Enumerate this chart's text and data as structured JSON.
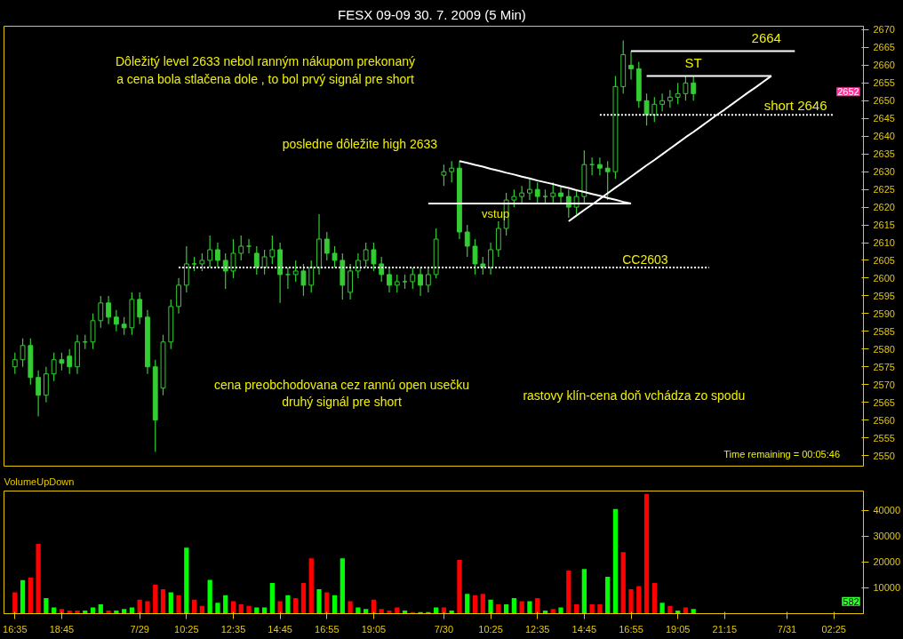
{
  "chart_data": [
    {
      "type": "candlestick",
      "title": "FESX 09-09  30. 7. 2009 (5 Min)",
      "color": "#33cc33",
      "tick_labels": "y",
      "categories": [
        null,
        null,
        null,
        null,
        null,
        null,
        null,
        null,
        null,
        null,
        null,
        null,
        null,
        null,
        null,
        null,
        null,
        null,
        null,
        null,
        null,
        null,
        null,
        null,
        null,
        null,
        null,
        null,
        null,
        null,
        null,
        null,
        null,
        null,
        null,
        null,
        null,
        null,
        null,
        null,
        null,
        null,
        null,
        null,
        null,
        null,
        null,
        null,
        null,
        null,
        null,
        null,
        null,
        null,
        null,
        null,
        null,
        null,
        null,
        null,
        null,
        null,
        null,
        null,
        null,
        null,
        null,
        null,
        null,
        null,
        null,
        null,
        null,
        null,
        null,
        null,
        null,
        null,
        null,
        null,
        null,
        null,
        null,
        null,
        null,
        null,
        null,
        null,
        null,
        null,
        null,
        null,
        null,
        null,
        null,
        null,
        null,
        null,
        null,
        null,
        null,
        null,
        null,
        null,
        null,
        null
      ],
      "ylim": [
        2547,
        2671
      ],
      "yticks": [
        2550,
        2555,
        2560,
        2565,
        2570,
        2575,
        2580,
        2585,
        2590,
        2595,
        2600,
        2605,
        2610,
        2615,
        2620,
        2625,
        2630,
        2635,
        2640,
        2645,
        2650,
        2655,
        2660,
        2665,
        2670
      ],
      "ohlc": [
        [
          2575,
          2579,
          2573,
          2577
        ],
        [
          2577,
          2583,
          2575,
          2581
        ],
        [
          2581,
          2583,
          2570,
          2572
        ],
        [
          2572,
          2574,
          2561,
          2567
        ],
        [
          2567,
          2575,
          2565,
          2573
        ],
        [
          2573,
          2579,
          2571,
          2577
        ],
        [
          2577,
          2579,
          2574,
          2576
        ],
        [
          2578,
          2580,
          2573,
          2575
        ],
        [
          2575,
          2584,
          2573,
          2582
        ],
        [
          2582,
          2584,
          2580,
          2582
        ],
        [
          2582,
          2590,
          2580,
          2588
        ],
        [
          2588,
          2595,
          2586,
          2593
        ],
        [
          2593,
          2595,
          2587,
          2589
        ],
        [
          2589,
          2591,
          2585,
          2587
        ],
        [
          2587,
          2589,
          2584,
          2586
        ],
        [
          2586,
          2596,
          2584,
          2594
        ],
        [
          2594,
          2596,
          2587,
          2589
        ],
        [
          2589,
          2591,
          2573,
          2575
        ],
        [
          2575,
          2577,
          2551,
          2560
        ],
        [
          2569,
          2584,
          2567,
          2582
        ],
        [
          2582,
          2594,
          2580,
          2592
        ],
        [
          2592,
          2600,
          2590,
          2598
        ],
        [
          2598,
          2609,
          2596,
          2604
        ],
        [
          2604,
          2606,
          2602,
          2604
        ],
        [
          2604,
          2607,
          2602,
          2605
        ],
        [
          2605,
          2612,
          2603,
          2608
        ],
        [
          2608,
          2610,
          2603,
          2605
        ],
        [
          2605,
          2607,
          2597,
          2602
        ],
        [
          2602,
          2611,
          2600,
          2607
        ],
        [
          2607,
          2612,
          2605,
          2609
        ],
        [
          2609,
          2611,
          2607,
          2609
        ],
        [
          2607,
          2609,
          2601,
          2603
        ],
        [
          2603,
          2608,
          2601,
          2606
        ],
        [
          2606,
          2612,
          2604,
          2608
        ],
        [
          2608,
          2610,
          2593,
          2601
        ],
        [
          2601,
          2603,
          2597,
          2601
        ],
        [
          2601,
          2605,
          2599,
          2602
        ],
        [
          2602,
          2604,
          2595,
          2598
        ],
        [
          2598,
          2605,
          2596,
          2603
        ],
        [
          2603,
          2618,
          2601,
          2611
        ],
        [
          2611,
          2613,
          2605,
          2607
        ],
        [
          2607,
          2609,
          2603,
          2605
        ],
        [
          2605,
          2607,
          2594,
          2598
        ],
        [
          2596,
          2604,
          2594,
          2602
        ],
        [
          2602,
          2607,
          2600,
          2605
        ],
        [
          2605,
          2610,
          2603,
          2608
        ],
        [
          2608,
          2610,
          2602,
          2604
        ],
        [
          2604,
          2606,
          2599,
          2601
        ],
        [
          2601,
          2603,
          2596,
          2598
        ],
        [
          2598,
          2601,
          2596,
          2599
        ],
        [
          2599,
          2601,
          2597,
          2599
        ],
        [
          2599,
          2603,
          2597,
          2601
        ],
        [
          2601,
          2603,
          2595,
          2598
        ],
        [
          2598,
          2603,
          2596,
          2601
        ],
        [
          2601,
          2614,
          2600,
          2611
        ],
        [
          2629,
          2632,
          2626,
          2630
        ],
        [
          2630,
          2633,
          2627,
          2631
        ],
        [
          2631,
          2633,
          2611,
          2613
        ],
        [
          2613,
          2615,
          2606,
          2609
        ],
        [
          2609,
          2611,
          2601,
          2604
        ],
        [
          2604,
          2606,
          2601,
          2603
        ],
        [
          2603,
          2610,
          2601,
          2608
        ],
        [
          2608,
          2616,
          2606,
          2614
        ],
        [
          2614,
          2624,
          2612,
          2622
        ],
        [
          2622,
          2625,
          2620,
          2623
        ],
        [
          2623,
          2626,
          2621,
          2624
        ],
        [
          2624,
          2628,
          2622,
          2625
        ],
        [
          2625,
          2627,
          2621,
          2623
        ],
        [
          2623,
          2625,
          2621,
          2623
        ],
        [
          2623,
          2627,
          2621,
          2624
        ],
        [
          2624,
          2626,
          2621,
          2623
        ],
        [
          2623,
          2625,
          2617,
          2620
        ],
        [
          2620,
          2625,
          2618,
          2623
        ],
        [
          2623,
          2636,
          2621,
          2632
        ],
        [
          2632,
          2634,
          2629,
          2632
        ],
        [
          2632,
          2634,
          2629,
          2631
        ],
        [
          2631,
          2633,
          2622,
          2630
        ],
        [
          2630,
          2657,
          2628,
          2654
        ],
        [
          2654,
          2667,
          2652,
          2663
        ],
        [
          2660,
          2664,
          2656,
          2659
        ],
        [
          2659,
          2661,
          2648,
          2650
        ],
        [
          2650,
          2652,
          2643,
          2646
        ],
        [
          2646,
          2651,
          2644,
          2649
        ],
        [
          2649,
          2652,
          2647,
          2650
        ],
        [
          2650,
          2653,
          2648,
          2651
        ],
        [
          2651,
          2655,
          2649,
          2652
        ],
        [
          2652,
          2657,
          2650,
          2655
        ],
        [
          2655,
          2657,
          2650,
          2652
        ],
        null,
        null,
        null,
        null,
        null,
        null,
        null,
        null,
        null,
        null,
        null,
        null,
        null,
        null,
        null,
        null,
        null,
        null
      ],
      "series": [
        {
          "type": "line",
          "color": "#ffffff",
          "line_style": "solid",
          "values": [
            null,
            null,
            null,
            null,
            null,
            null,
            null,
            null,
            null,
            null,
            null,
            null,
            null,
            null,
            null,
            null,
            null,
            null,
            null,
            null,
            null,
            null,
            null,
            null,
            null,
            null,
            null,
            null,
            null,
            null,
            null,
            null,
            null,
            null,
            null,
            null,
            null,
            null,
            null,
            null,
            null,
            null,
            null,
            null,
            null,
            null,
            null,
            null,
            null,
            null,
            null,
            null,
            null,
            null,
            null,
            null,
            null,
            2633,
            2632.5,
            2631.9,
            2631.4,
            2630.8,
            2630.3,
            2629.7,
            2629.2,
            2628.6,
            2628.1,
            2627.5,
            2627,
            2626.5,
            2625.9,
            2625.4,
            2624.8,
            2624.3,
            2623.7,
            2623.2,
            2622.6,
            2622.1,
            2621.5,
            2621,
            null,
            null,
            null,
            null,
            null,
            null,
            null,
            null,
            null,
            null,
            null,
            null,
            null,
            null,
            null,
            null,
            null,
            null,
            null,
            null,
            null,
            null,
            null,
            null,
            null,
            null
          ]
        },
        {
          "type": "line",
          "color": "#ffffff",
          "line_style": "solid",
          "values": [
            null,
            null,
            null,
            null,
            null,
            null,
            null,
            null,
            null,
            null,
            null,
            null,
            null,
            null,
            null,
            null,
            null,
            null,
            null,
            null,
            null,
            null,
            null,
            null,
            null,
            null,
            null,
            null,
            null,
            null,
            null,
            null,
            null,
            null,
            null,
            null,
            null,
            null,
            null,
            null,
            null,
            null,
            null,
            null,
            null,
            null,
            null,
            null,
            null,
            null,
            null,
            null,
            null,
            2621,
            2621,
            2621,
            2621,
            2621,
            2621,
            2621,
            2621,
            2621,
            2621,
            2621,
            2621,
            2621,
            2621,
            2621,
            2621,
            2621,
            2621,
            2621,
            2621,
            2621,
            2621,
            2621,
            2621,
            2621,
            2621,
            2621,
            null,
            null,
            null,
            null,
            null,
            null,
            null,
            null,
            null,
            null,
            null,
            null,
            null,
            null,
            null,
            null,
            null,
            null,
            null,
            null,
            null,
            null,
            null,
            null,
            null,
            null
          ]
        },
        {
          "type": "line",
          "color": "#ffffff",
          "line_style": "solid",
          "values": [
            null,
            null,
            null,
            null,
            null,
            null,
            null,
            null,
            null,
            null,
            null,
            null,
            null,
            null,
            null,
            null,
            null,
            null,
            null,
            null,
            null,
            null,
            null,
            null,
            null,
            null,
            null,
            null,
            null,
            null,
            null,
            null,
            null,
            null,
            null,
            null,
            null,
            null,
            null,
            null,
            null,
            null,
            null,
            null,
            null,
            null,
            null,
            null,
            null,
            null,
            null,
            null,
            null,
            null,
            null,
            null,
            null,
            null,
            null,
            null,
            null,
            null,
            null,
            null,
            null,
            null,
            null,
            null,
            null,
            null,
            null,
            2616,
            2617.6,
            2619.2,
            2620.7,
            2622.3,
            2623.9,
            2625.5,
            2627,
            2628.6,
            2630.2,
            2631.8,
            2633.3,
            2634.9,
            2636.5,
            2638.1,
            2639.7,
            2641.2,
            2642.8,
            2644.4,
            2646,
            2647.5,
            2649.1,
            2650.7,
            2652.3,
            2653.8,
            2655.4,
            2657,
            null,
            null,
            null,
            null,
            null,
            null,
            null,
            null
          ]
        },
        {
          "type": "line",
          "color": "#ffffff",
          "line_style": "solid",
          "values": [
            null,
            null,
            null,
            null,
            null,
            null,
            null,
            null,
            null,
            null,
            null,
            null,
            null,
            null,
            null,
            null,
            null,
            null,
            null,
            null,
            null,
            null,
            null,
            null,
            null,
            null,
            null,
            null,
            null,
            null,
            null,
            null,
            null,
            null,
            null,
            null,
            null,
            null,
            null,
            null,
            null,
            null,
            null,
            null,
            null,
            null,
            null,
            null,
            null,
            null,
            null,
            null,
            null,
            null,
            null,
            null,
            null,
            null,
            null,
            null,
            null,
            null,
            null,
            null,
            null,
            null,
            null,
            null,
            null,
            null,
            null,
            null,
            null,
            null,
            null,
            null,
            null,
            null,
            null,
            null,
            null,
            2657,
            2657,
            2657,
            2657,
            2657,
            2657,
            2657,
            2657,
            2657,
            2657,
            2657,
            2657,
            2657,
            2657,
            2657,
            2657,
            2657,
            null,
            null,
            null,
            null,
            null,
            null,
            null,
            null
          ]
        },
        {
          "type": "line",
          "color": "#ffffff",
          "line_style": "solid",
          "values": [
            null,
            null,
            null,
            null,
            null,
            null,
            null,
            null,
            null,
            null,
            null,
            null,
            null,
            null,
            null,
            null,
            null,
            null,
            null,
            null,
            null,
            null,
            null,
            null,
            null,
            null,
            null,
            null,
            null,
            null,
            null,
            null,
            null,
            null,
            null,
            null,
            null,
            null,
            null,
            null,
            null,
            null,
            null,
            null,
            null,
            null,
            null,
            null,
            null,
            null,
            null,
            null,
            null,
            null,
            null,
            null,
            null,
            null,
            null,
            null,
            null,
            null,
            null,
            null,
            null,
            null,
            null,
            null,
            null,
            null,
            null,
            null,
            null,
            null,
            null,
            null,
            null,
            null,
            null,
            2664,
            2664,
            2664,
            2664,
            2664,
            2664,
            2664,
            2664,
            2664,
            2664,
            2664,
            2664,
            2664,
            2664,
            2664,
            2664,
            2664,
            2664,
            2664,
            2664,
            2664,
            2664,
            null,
            null,
            null,
            null,
            null
          ]
        },
        {
          "type": "line",
          "color": "#ffffff",
          "line_style": "dotted",
          "values": [
            null,
            null,
            null,
            null,
            null,
            null,
            null,
            null,
            null,
            null,
            null,
            null,
            null,
            null,
            null,
            null,
            null,
            null,
            null,
            null,
            null,
            2603,
            2603,
            2603,
            2603,
            2603,
            2603,
            2603,
            2603,
            2603,
            2603,
            2603,
            2603,
            2603,
            2603,
            2603,
            2603,
            2603,
            2603,
            2603,
            2603,
            2603,
            2603,
            2603,
            2603,
            2603,
            2603,
            2603,
            2603,
            2603,
            2603,
            2603,
            2603,
            2603,
            2603,
            2603,
            2603,
            2603,
            2603,
            2603,
            2603,
            2603,
            2603,
            2603,
            2603,
            2603,
            2603,
            2603,
            2603,
            2603,
            2603,
            2603,
            2603,
            2603,
            2603,
            2603,
            2603,
            2603,
            2603,
            2603,
            2603,
            2603,
            2603,
            2603,
            2603,
            2603,
            2603,
            2603,
            2603,
            2603,
            null,
            null,
            null,
            null,
            null,
            null,
            null,
            null,
            null,
            null,
            null,
            null,
            null,
            null,
            null,
            null
          ]
        },
        {
          "type": "line",
          "color": "#ffffff",
          "line_style": "dotted",
          "values": [
            null,
            null,
            null,
            null,
            null,
            null,
            null,
            null,
            null,
            null,
            null,
            null,
            null,
            null,
            null,
            null,
            null,
            null,
            null,
            null,
            null,
            null,
            null,
            null,
            null,
            null,
            null,
            null,
            null,
            null,
            null,
            null,
            null,
            null,
            null,
            null,
            null,
            null,
            null,
            null,
            null,
            null,
            null,
            null,
            null,
            null,
            null,
            null,
            null,
            null,
            null,
            null,
            null,
            null,
            null,
            null,
            null,
            null,
            null,
            null,
            null,
            null,
            null,
            null,
            null,
            null,
            null,
            null,
            null,
            null,
            null,
            null,
            null,
            null,
            null,
            2646,
            2646,
            2646,
            2646,
            2646,
            2646,
            2646,
            2646,
            2646,
            2646,
            2646,
            2646,
            2646,
            2646,
            2646,
            2646,
            2646,
            2646,
            2646,
            2646,
            2646,
            2646,
            2646,
            2646,
            2646,
            2646,
            2646,
            2646,
            2646,
            2646,
            2646
          ]
        }
      ],
      "annotations": [
        "Dôležitý level 2633 nebol ranným nákupom prekonaný\na cena bola stlačena dole , to bol prvý signál pre short",
        "posledne dôležite high 2633",
        "vstup",
        "CC2603",
        "ST",
        "2664",
        "short 2646",
        "cena preobchodovana cez rannú open usečku\ndruhý signál pre short",
        "rastovy klín-cena doň vchádza zo spodu",
        "Time remaining = 00:05:46",
        "2652"
      ]
    },
    {
      "type": "bar",
      "title": "VolumeUpDown",
      "categories": [
        "16:35",
        null,
        null,
        null,
        null,
        null,
        "18:45",
        null,
        null,
        null,
        null,
        null,
        null,
        null,
        null,
        null,
        "7/29",
        null,
        null,
        null,
        null,
        null,
        "10:25",
        null,
        null,
        null,
        null,
        null,
        "12:35",
        null,
        null,
        null,
        null,
        null,
        "14:45",
        null,
        null,
        null,
        null,
        null,
        "16:55",
        null,
        null,
        null,
        null,
        null,
        "19:05",
        null,
        null,
        null,
        null,
        null,
        null,
        null,
        null,
        "7/30",
        null,
        null,
        null,
        null,
        null,
        "10:25",
        null,
        null,
        null,
        null,
        null,
        "12:35",
        null,
        null,
        null,
        null,
        null,
        "14:45",
        null,
        null,
        null,
        null,
        null,
        "16:55",
        null,
        null,
        null,
        null,
        null,
        "19:05",
        null,
        null,
        null,
        null,
        null,
        "21:15",
        null,
        null,
        null,
        null,
        null,
        null,
        null,
        "7/31",
        null,
        null,
        null,
        null,
        null,
        "02:25"
      ],
      "ylim": [
        0,
        47500
      ],
      "yticks": [
        10000,
        20000,
        30000,
        40000
      ],
      "values": [
        8300,
        13000,
        14000,
        27000,
        6000,
        2400,
        1800,
        1200,
        1200,
        1200,
        2400,
        3600,
        1200,
        1200,
        1800,
        2400,
        5400,
        4800,
        11300,
        9500,
        8300,
        7100,
        25600,
        5400,
        3000,
        13100,
        4200,
        7100,
        4800,
        3600,
        3000,
        2400,
        2400,
        11900,
        4800,
        7100,
        6000,
        11900,
        21400,
        9500,
        8300,
        7100,
        21400,
        4800,
        2400,
        1800,
        5400,
        1800,
        1200,
        2400,
        1200,
        600,
        600,
        600,
        2400,
        2400,
        1200,
        20800,
        7700,
        7100,
        7700,
        5400,
        3600,
        3600,
        6000,
        4800,
        4800,
        6000,
        1200,
        1800,
        2400,
        16700,
        3600,
        17300,
        3600,
        3600,
        14300,
        40500,
        23800,
        9500,
        10700,
        46400,
        11900,
        4200,
        3000,
        1200,
        2400,
        1800,
        null,
        null,
        null,
        null,
        null,
        null,
        null,
        null,
        null,
        null,
        null,
        null,
        null,
        null,
        null,
        null,
        null,
        null
      ],
      "colors": [
        "#ff0000",
        "#00ff00",
        "#ff0000",
        "#ff0000",
        "#00ff00",
        "#00ff00",
        "#ff0000",
        "#ff0000",
        "#ff0000",
        "#00ff00",
        "#00ff00",
        "#00ff00",
        "#ff0000",
        "#00ff00",
        "#00ff00",
        "#00ff00",
        "#ff0000",
        "#ff0000",
        "#ff0000",
        "#ff0000",
        "#00ff00",
        "#ff0000",
        "#00ff00",
        "#ff0000",
        "#ff0000",
        "#00ff00",
        "#00ff00",
        "#00ff00",
        "#ff0000",
        "#ff0000",
        "#ff0000",
        "#00ff00",
        "#00ff00",
        "#00ff00",
        "#ff0000",
        "#00ff00",
        "#ff0000",
        "#ff0000",
        "#ff0000",
        "#00ff00",
        "#ff0000",
        "#00ff00",
        "#00ff00",
        "#ff0000",
        "#00ff00",
        "#00ff00",
        "#ff0000",
        "#ff0000",
        "#ff0000",
        "#ff0000",
        "#00ff00",
        "#ff0000",
        "#00ff00",
        "#00ff00",
        "#00ff00",
        "#ff0000",
        "#00ff00",
        "#ff0000",
        "#00ff00",
        "#ff0000",
        "#ff0000",
        "#00ff00",
        "#ff0000",
        "#00ff00",
        "#00ff00",
        "#ff0000",
        "#00ff00",
        "#ff0000",
        "#00ff00",
        "#ff0000",
        "#00ff00",
        "#ff0000",
        "#ff0000",
        "#00ff00",
        "#ff0000",
        "#ff0000",
        "#00ff00",
        "#00ff00",
        "#ff0000",
        "#ff0000",
        "#ff0000",
        "#ff0000",
        "#ff0000",
        "#00ff00",
        "#ff0000",
        "#00ff00",
        "#ff0000",
        "#00ff00",
        "#000000",
        "#000000",
        "#000000",
        "#000000",
        "#000000",
        "#000000",
        "#000000",
        "#000000",
        "#000000",
        "#000000",
        "#000000",
        "#000000",
        "#000000",
        "#000000",
        "#000000",
        "#000000",
        "#000000",
        "#000000"
      ],
      "annotations": [
        "582"
      ]
    }
  ]
}
